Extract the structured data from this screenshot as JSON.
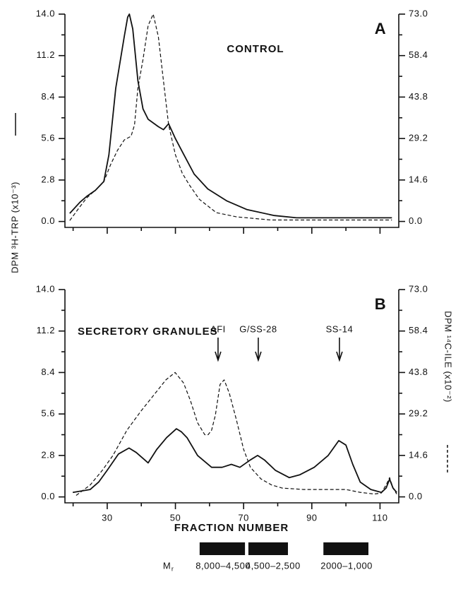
{
  "chart_data": [
    {
      "type": "line",
      "panel_label": "A",
      "title": "CONTROL",
      "xlim": [
        17.6,
        115.5
      ],
      "xticks": [
        30,
        50,
        70,
        90,
        110
      ],
      "xminorticks": [
        20,
        40,
        60,
        80,
        100
      ],
      "xtick_labels": false,
      "ylim": [
        -0.4,
        14.0
      ],
      "yticks": [
        {
          "value": 0,
          "label": "0.0"
        },
        2.8,
        5.6,
        8.4,
        11.2,
        {
          "value": 14,
          "label": "14.0"
        }
      ],
      "yminorticks": [
        1.4,
        4.2,
        7,
        9.8,
        12.6
      ],
      "y2lim": [
        -2.1,
        73.0
      ],
      "y2ticks": [
        {
          "value": 0,
          "label": "0.0"
        },
        14.6,
        29.2,
        43.8,
        58.4,
        {
          "value": 73,
          "label": "73.0"
        }
      ],
      "y2minorticks": [
        7.3,
        21.9,
        36.5,
        51.1,
        65.7
      ],
      "series": [
        {
          "style": "solid",
          "color": "#111111",
          "x": [
            19,
            22,
            24,
            26.5,
            29,
            30.5,
            32.5,
            35,
            36,
            36.5,
            37.5,
            39,
            40.5,
            42,
            45,
            46.5,
            48,
            50,
            52.5,
            55.5,
            59.5,
            65,
            71,
            79,
            85.5,
            113.5
          ],
          "values": [
            0.55,
            1.3,
            1.7,
            2.1,
            2.7,
            4.5,
            9,
            12.5,
            13.8,
            14,
            13,
            9.5,
            7.6,
            6.9,
            6.4,
            6.2,
            6.6,
            5.6,
            4.5,
            3.2,
            2.2,
            1.4,
            0.8,
            0.4,
            0.25,
            0.25
          ]
        },
        {
          "style": "dashed",
          "color": "#111111",
          "axis": "y2",
          "x": [
            19,
            22,
            24,
            27,
            29,
            31,
            33,
            35,
            37,
            38,
            39,
            40.5,
            42,
            43.5,
            45,
            46.5,
            48,
            50,
            52,
            54,
            57,
            62,
            68,
            78,
            113.5
          ],
          "values": [
            0.3,
            5.2,
            8.3,
            11.5,
            14,
            20,
            25,
            28.7,
            30,
            34,
            47,
            57,
            69,
            73,
            65,
            49.5,
            34,
            23.5,
            17,
            13,
            7.8,
            3.1,
            1.6,
            0.5,
            0.5
          ]
        }
      ]
    },
    {
      "type": "line",
      "panel_label": "B",
      "title": "SECRETORY GRANULES",
      "xlim": [
        17.6,
        115.5
      ],
      "xticks": [
        30,
        50,
        70,
        90,
        110
      ],
      "xminorticks": [
        20,
        40,
        60,
        80,
        100
      ],
      "xtick_labels": true,
      "ylim": [
        -0.4,
        14.0
      ],
      "yticks": [
        {
          "value": 0,
          "label": "0.0"
        },
        2.8,
        5.6,
        8.4,
        11.2,
        {
          "value": 14,
          "label": "14.0"
        }
      ],
      "yminorticks": [
        1.4,
        4.2,
        7,
        9.8,
        12.6
      ],
      "y2lim": [
        -2.1,
        73.0
      ],
      "y2ticks": [
        {
          "value": 0,
          "label": "0.0"
        },
        14.6,
        29.2,
        43.8,
        58.4,
        {
          "value": 73,
          "label": "73.0"
        }
      ],
      "y2minorticks": [
        7.3,
        21.9,
        36.5,
        51.1,
        65.7
      ],
      "annotations": [
        {
          "text": "AFI",
          "x": 62.5
        },
        {
          "text": "G/SS-28",
          "x": 74.3
        },
        {
          "text": "SS-14",
          "x": 98.1
        }
      ],
      "series": [
        {
          "style": "solid",
          "color": "#111111",
          "x": [
            19.9,
            25,
            27.5,
            30,
            33.3,
            36.4,
            38.5,
            42,
            44.5,
            47.4,
            50.3,
            51.7,
            53.4,
            56.5,
            60.6,
            63.7,
            66.4,
            68.9,
            72,
            74.1,
            76.1,
            79.3,
            83.4,
            86.5,
            90.7,
            94.8,
            97.9,
            100,
            102,
            104.2,
            107.3,
            110.4,
            111.8,
            112.8,
            113.8,
            114.9
          ],
          "values": [
            0.3,
            0.5,
            1.0,
            1.8,
            2.9,
            3.3,
            3.0,
            2.3,
            3.2,
            4.0,
            4.6,
            4.4,
            4.0,
            2.8,
            2.0,
            2.0,
            2.2,
            2.0,
            2.5,
            2.8,
            2.5,
            1.8,
            1.3,
            1.5,
            2.0,
            2.8,
            3.8,
            3.5,
            2.2,
            1.0,
            0.5,
            0.3,
            0.6,
            1.2,
            0.6,
            0.3
          ]
        },
        {
          "style": "dashed",
          "color": "#111111",
          "axis": "y2",
          "x": [
            20.9,
            25,
            28.6,
            31.7,
            35.8,
            39.9,
            44.1,
            47.2,
            49.9,
            52.4,
            54.4,
            56.5,
            58.6,
            59.6,
            60.6,
            61.7,
            63.1,
            64.3,
            65.8,
            67.9,
            70,
            72,
            75.1,
            78.2,
            81.3,
            87.6,
            93.8,
            100,
            104.1,
            108.3,
            110.3,
            111.8,
            112.8,
            113.8,
            114.9
          ],
          "values": [
            0.5,
            4.2,
            9.4,
            14.6,
            23.5,
            30.2,
            36.5,
            41.2,
            43.8,
            40.1,
            33.9,
            26.1,
            21.9,
            21.9,
            23.5,
            28.7,
            39.6,
            41.2,
            36.5,
            27.1,
            16.7,
            10.4,
            6.3,
            4.2,
            3.1,
            2.6,
            2.6,
            2.6,
            1.6,
            1.0,
            1.3,
            4.2,
            6.8,
            3.1,
            1.0
          ]
        }
      ]
    }
  ],
  "y_label": "DPM ³H-TRP (x10⁻³)",
  "y2_label": "DPM ¹⁴C-ILE (x10⁻²)",
  "x_label": "FRACTION NUMBER",
  "mw_prefix": "M",
  "mw_subscript": "r",
  "mw_bands": [
    {
      "label": "8,000–4,500",
      "from": 57.1,
      "to": 70.4
    },
    {
      "label": "4,500–2,500",
      "from": 71.4,
      "to": 83
    },
    {
      "label": "2000–1,000",
      "from": 93.4,
      "to": 106.6
    }
  ]
}
